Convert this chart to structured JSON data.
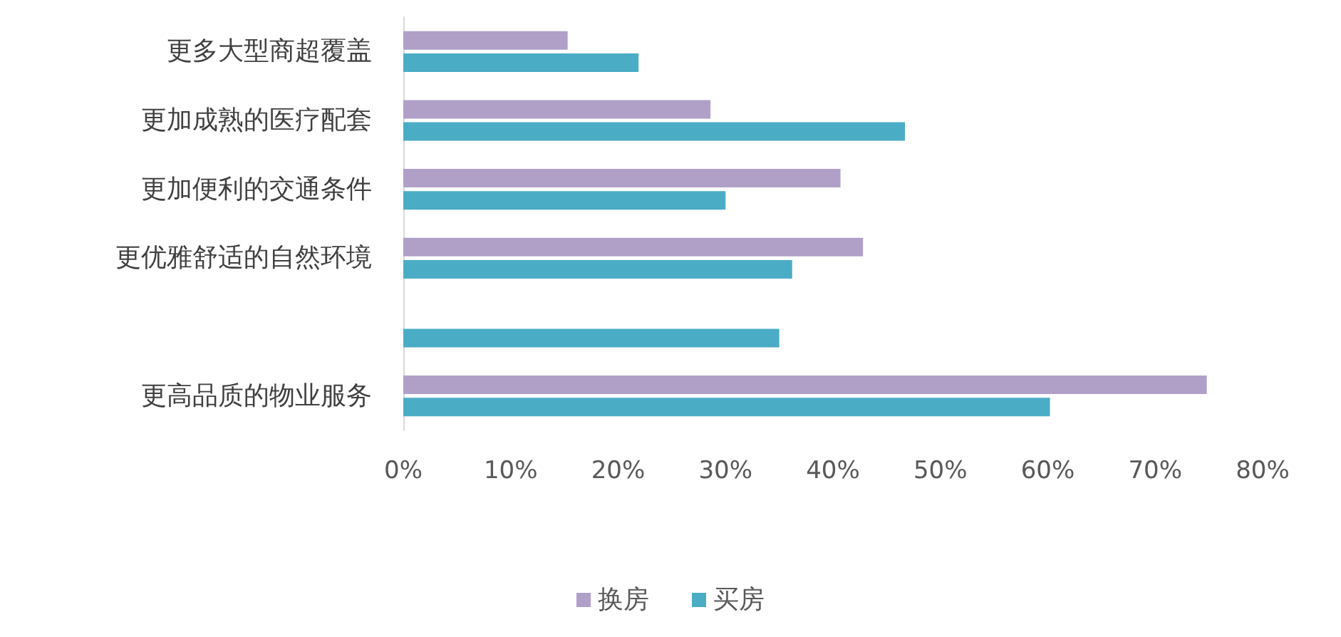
{
  "chart_data": {
    "type": "bar",
    "orientation": "horizontal",
    "categories": [
      "更多大型商超覆盖",
      "更加成熟的医疗配套",
      "更加便利的交通条件",
      "更优雅舒适的自然环境",
      null,
      "更高品质的物业服务"
    ],
    "series": [
      {
        "name": "换房",
        "color": "#b0a0c8",
        "values": [
          15.3,
          28.6,
          40.7,
          42.8,
          null,
          74.8
        ]
      },
      {
        "name": "买房",
        "color": "#4bacc6",
        "values": [
          21.9,
          46.7,
          30.0,
          36.2,
          35,
          60.2
        ]
      }
    ],
    "xlim": [
      0,
      80
    ],
    "xticks": [
      {
        "value": 0,
        "label": "0%"
      },
      {
        "value": 10,
        "label": "10%"
      },
      {
        "value": 20,
        "label": "20%"
      },
      {
        "value": 30,
        "label": "30%"
      },
      {
        "value": 40,
        "label": "40%"
      },
      {
        "value": 50,
        "label": "50%"
      },
      {
        "value": 60,
        "label": "60%"
      },
      {
        "value": 70,
        "label": "70%"
      },
      {
        "value": 80,
        "label": "80%"
      }
    ],
    "grid": false,
    "legend": "bottom"
  }
}
